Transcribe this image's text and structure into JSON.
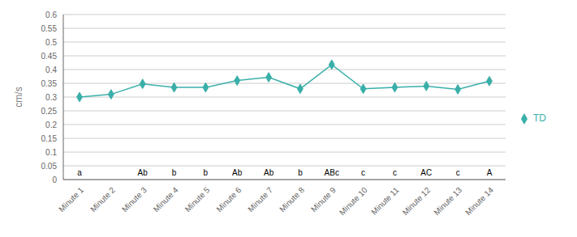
{
  "chart_data": {
    "type": "line",
    "categories": [
      "Minute 1",
      "Minute 2",
      "Minute 3",
      "Minute 4",
      "Minute 5",
      "Minute 6",
      "Minute 7",
      "Minute 8",
      "Minute 9",
      "Minute 10",
      "Minute 11",
      "Minute 12",
      "Minute 13",
      "Minute 14"
    ],
    "series": [
      {
        "name": "TD",
        "color": "#3aafa9",
        "marker": "diamond",
        "values": [
          0.3,
          0.31,
          0.348,
          0.335,
          0.335,
          0.36,
          0.372,
          0.33,
          0.418,
          0.33,
          0.335,
          0.34,
          0.328,
          0.358
        ]
      }
    ],
    "annotations": [
      "a",
      null,
      "Ab",
      "b",
      "b",
      "Ab",
      "Ab",
      "b",
      "ABc",
      "c",
      "c",
      "AC",
      "c",
      "A"
    ],
    "ylabel": "cm/s",
    "ylim": [
      0,
      0.6
    ],
    "yticks": [
      0,
      0.05,
      0.1,
      0.15,
      0.2,
      0.25,
      0.3,
      0.35,
      0.4,
      0.45,
      0.5,
      0.55,
      0.6
    ],
    "grid": true,
    "legend": "right"
  }
}
